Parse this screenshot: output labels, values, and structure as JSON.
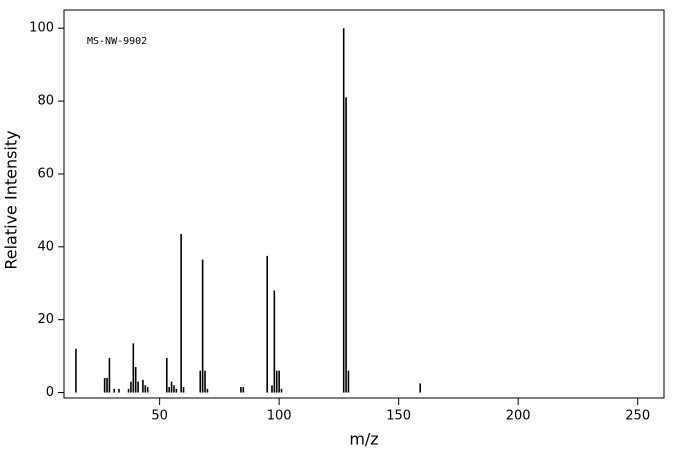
{
  "chart_data": {
    "type": "stem",
    "annotation": "MS-NW-9902",
    "x_label": "m/z",
    "y_label": "Relative Intensity",
    "x": [
      15,
      27,
      28,
      29,
      31,
      33,
      37,
      38,
      39,
      40,
      41,
      43,
      44,
      45,
      53,
      54,
      55,
      56,
      57,
      59,
      60,
      67,
      68,
      69,
      70,
      84,
      85,
      95,
      97,
      98,
      99,
      100,
      101,
      127,
      128,
      129,
      159
    ],
    "values": [
      12,
      4,
      4,
      9.5,
      1,
      1,
      1,
      3,
      13.5,
      7,
      3,
      3.5,
      2,
      1.5,
      9.5,
      1.5,
      3,
      2,
      1,
      43.5,
      1.5,
      6,
      36.5,
      6,
      1,
      1.5,
      1.5,
      37.5,
      2,
      28,
      6,
      6,
      1,
      100,
      81,
      6,
      2.5
    ],
    "color": "#000000",
    "xlim": [
      10,
      261
    ],
    "ylim": [
      -1.5,
      105
    ],
    "xticks": [
      50,
      100,
      150,
      200,
      250
    ],
    "yticks": [
      0,
      20,
      40,
      60,
      80,
      100
    ]
  }
}
